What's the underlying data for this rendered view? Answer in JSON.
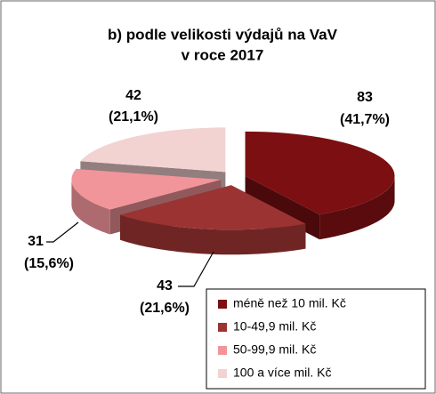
{
  "chart_data": {
    "type": "pie3d",
    "title": [
      "b) podle velikosti výdajů na VaV",
      "v roce 2017"
    ],
    "categories": [
      "méně než 10 mil. Kč",
      "10-49,9 mil. Kč",
      "50-99,9 mil. Kč",
      "100 a více mil. Kč"
    ],
    "values": [
      83,
      43,
      31,
      42
    ],
    "percents": [
      41.7,
      21.6,
      15.6,
      21.1
    ],
    "percent_labels": [
      "(41,7%)",
      "(21,6%)",
      "(15,6%)",
      "(21,1%)"
    ],
    "colors": [
      "#7b0f12",
      "#9b3333",
      "#f1959a",
      "#f3d2d2"
    ],
    "legend": "bottom-right"
  }
}
